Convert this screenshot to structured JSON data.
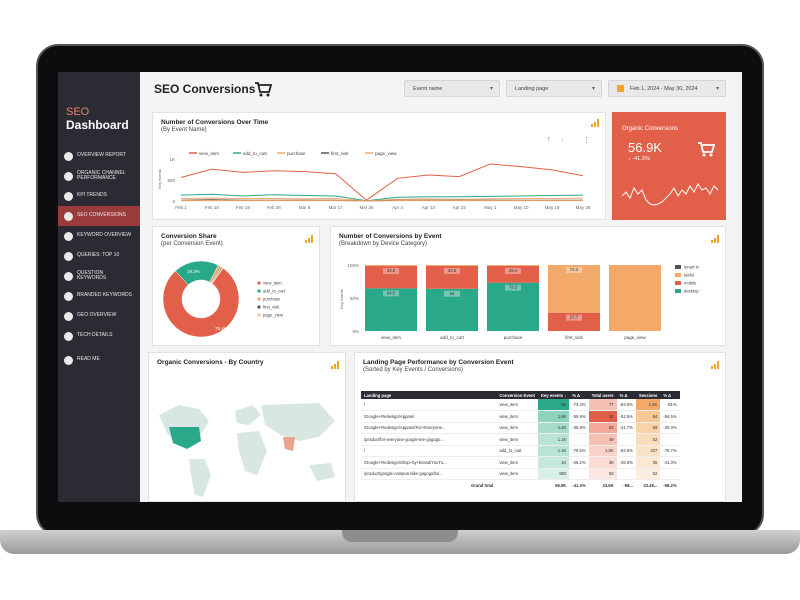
{
  "sidebar": {
    "title_line1": "SEO",
    "title_line2": "Dashboard",
    "items": [
      {
        "label": "Overview Report",
        "icon": "eye-icon"
      },
      {
        "label": "Organic Channel Performance",
        "icon": "layers-icon"
      },
      {
        "label": "KPI Trends",
        "icon": "chart-icon"
      },
      {
        "label": "SEO Conversions",
        "icon": "cart-icon",
        "active": true
      },
      {
        "label": "Keyword Overview",
        "icon": "search-icon"
      },
      {
        "label": "Queries: Top 10",
        "icon": "queries-icon"
      },
      {
        "label": "Question Keywords",
        "icon": "question-icon"
      },
      {
        "label": "Branded Keywords",
        "icon": "tag-icon"
      },
      {
        "label": "Geo Overview",
        "icon": "pin-icon"
      },
      {
        "label": "Tech Details",
        "icon": "phone-icon"
      },
      {
        "label": "Read Me",
        "icon": "info-icon"
      }
    ]
  },
  "header": {
    "title": "SEO Conversions",
    "filter_event": "Event name",
    "filter_landing": "Landing page",
    "date_range": "Feb 1, 2024 - May 30, 2024"
  },
  "conv_over_time": {
    "title": "Number of Conversions Over Time",
    "subtitle": "(By Event Name)",
    "legend": [
      "view_item",
      "add_to_cart",
      "purchase",
      "first_visit",
      "page_view"
    ],
    "colors": [
      "#e2604a",
      "#2aa88a",
      "#f2a96a",
      "#555555",
      "#f2a96a"
    ],
    "y_label": "Key events",
    "y_ticks": [
      "1K",
      "500",
      "0"
    ],
    "x_ticks": [
      "Feb 1",
      "Feb 10",
      "Feb 19",
      "Feb 28",
      "Mar 8",
      "Mar 17",
      "Mar 26",
      "Apr 4",
      "Apr 13",
      "Apr 22",
      "May 1",
      "May 10",
      "May 19",
      "May 28"
    ]
  },
  "kpi": {
    "title": "Organic Conversions",
    "value": "56.9K",
    "delta": "↓ -41.3%"
  },
  "conversion_share": {
    "title": "Conversion Share",
    "subtitle": "(per Conversion Event)",
    "legend": [
      "view_item",
      "add_to_cart",
      "purchase",
      "first_visit",
      "page_view"
    ],
    "slice_labels": [
      "78.4%",
      "19.3%"
    ]
  },
  "by_event": {
    "title": "Number of Conversions by Event",
    "subtitle": "(Breakdown by Device Category)",
    "y_label": "Key events",
    "y_ticks": [
      "100%",
      "50%",
      "0%"
    ],
    "legend": [
      "smart tv",
      "tablet",
      "mobile",
      "desktop"
    ]
  },
  "country": {
    "title": "Organic Conversions - By Country"
  },
  "landing": {
    "title": "Landing Page Performance by Conversion Event",
    "subtitle": "(Sorted by Key Events / Conversions)",
    "headers": [
      "Landing page",
      "Conversion Event",
      "Key events ↓",
      "% Δ",
      "Total users",
      "% Δ",
      "Sessions",
      "% Δ"
    ],
    "rows": [
      [
        "/",
        "view_item",
        "4K",
        "-73.3%",
        "77",
        "-82.6%",
        "1.4K",
        "-81%"
      ],
      [
        "/Google+Redesign/Apparel",
        "view_item",
        "1.6K",
        "-59.9%",
        "92",
        "-52.5%",
        "84",
        "-56.5%"
      ],
      [
        "/Google+Redesign/Apparel/For+Everyone...",
        "view_item",
        "1.4K",
        "-36.8%",
        "62",
        "-31.7%",
        "59",
        "-30.3%"
      ],
      [
        "/product/for-everyone-google-tee-gogogo...",
        "view_item",
        "1.1K",
        "",
        "49",
        "",
        "52",
        ""
      ],
      [
        "/",
        "add_to_cart",
        "1.1K",
        "-79.5%",
        "1.5K",
        "-82.6%",
        "437",
        "-79.7%"
      ],
      [
        "/Google+Redesign/Shop+by+Brand/YouTu...",
        "view_item",
        "1K",
        "-26.2%",
        "36",
        "-28.6%",
        "35",
        "-41.3%"
      ],
      [
        "/product/google-campus-bike-gogogo/be...",
        "view_item",
        "860",
        "",
        "50",
        "",
        "52",
        ""
      ]
    ],
    "total": [
      "Grand total",
      "",
      "56.9K",
      "-41.3%",
      "23.6K",
      "-58...",
      "23.48...",
      "-58.2%"
    ]
  },
  "chart_data": [
    {
      "type": "line",
      "title": "Number of Conversions Over Time",
      "ylabel": "Key events",
      "ylim": [
        0,
        1000
      ],
      "x": [
        "Feb 1",
        "Feb 10",
        "Feb 19",
        "Feb 28",
        "Mar 8",
        "Mar 17",
        "Mar 26",
        "Apr 4",
        "Apr 13",
        "Apr 22",
        "May 1",
        "May 10",
        "May 19",
        "May 28"
      ],
      "series": [
        {
          "name": "view_item",
          "values": [
            560,
            760,
            680,
            720,
            700,
            650,
            20,
            540,
            620,
            580,
            880,
            820,
            740,
            600
          ]
        },
        {
          "name": "add_to_cart",
          "values": [
            140,
            160,
            120,
            150,
            130,
            120,
            5,
            90,
            100,
            100,
            110,
            120,
            130,
            140
          ]
        },
        {
          "name": "purchase",
          "values": [
            60,
            70,
            60,
            60,
            50,
            60,
            0,
            40,
            50,
            40,
            50,
            60,
            60,
            70
          ]
        },
        {
          "name": "first_visit",
          "values": [
            20,
            30,
            20,
            20,
            20,
            20,
            0,
            20,
            20,
            20,
            20,
            20,
            20,
            20
          ]
        },
        {
          "name": "page_view",
          "values": [
            10,
            10,
            10,
            10,
            10,
            10,
            0,
            10,
            10,
            10,
            10,
            10,
            10,
            10
          ]
        }
      ]
    },
    {
      "type": "pie",
      "title": "Conversion Share",
      "categories": [
        "view_item",
        "add_to_cart",
        "purchase",
        "first_visit",
        "page_view"
      ],
      "values": [
        78.4,
        19.3,
        1.5,
        0.5,
        0.3
      ]
    },
    {
      "type": "bar",
      "title": "Number of Conversions by Event",
      "categories": [
        "view_item",
        "add_to_cart",
        "purchase",
        "first_visit",
        "page_view"
      ],
      "ylim": [
        0,
        100
      ],
      "series": [
        {
          "name": "desktop",
          "values": [
            64.6,
            64,
            73.2,
            0,
            0
          ]
        },
        {
          "name": "mobile",
          "values": [
            33.8,
            34.6,
            25.4,
            27.7,
            0
          ]
        },
        {
          "name": "tablet",
          "values": [
            1.6,
            1.4,
            1.4,
            72.3,
            100
          ]
        }
      ],
      "data_labels": [
        "33.8",
        "64.6",
        "34.6",
        "64",
        "25.4",
        "73.2",
        "72.3",
        "27.7"
      ]
    }
  ]
}
